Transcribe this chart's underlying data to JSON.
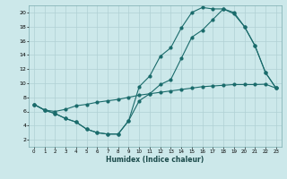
{
  "xlabel": "Humidex (Indice chaleur)",
  "bg_color": "#cce8ea",
  "grid_color": "#b0d0d4",
  "line_color": "#1a6b6b",
  "xlim": [
    -0.5,
    23.5
  ],
  "ylim": [
    1,
    21
  ],
  "xticks": [
    0,
    1,
    2,
    3,
    4,
    5,
    6,
    7,
    8,
    9,
    10,
    11,
    12,
    13,
    14,
    15,
    16,
    17,
    18,
    19,
    20,
    21,
    22,
    23
  ],
  "yticks": [
    2,
    4,
    6,
    8,
    10,
    12,
    14,
    16,
    18,
    20
  ],
  "curve1_x": [
    0,
    1,
    2,
    3,
    4,
    5,
    6,
    7,
    8,
    9,
    10,
    11,
    12,
    13,
    14,
    15,
    16,
    17,
    18,
    19,
    20,
    21,
    22,
    23
  ],
  "curve1_y": [
    7.0,
    6.2,
    5.7,
    5.0,
    4.5,
    3.5,
    3.0,
    2.8,
    2.8,
    4.7,
    9.5,
    11.0,
    13.8,
    15.0,
    17.8,
    20.0,
    20.7,
    20.5,
    20.5,
    19.8,
    18.0,
    15.3,
    11.5,
    9.3
  ],
  "curve2_x": [
    0,
    1,
    2,
    3,
    4,
    5,
    6,
    7,
    8,
    9,
    10,
    11,
    12,
    13,
    14,
    15,
    16,
    17,
    18,
    19,
    20,
    21,
    22,
    23
  ],
  "curve2_y": [
    7.0,
    6.2,
    5.7,
    5.0,
    4.5,
    3.5,
    3.0,
    2.8,
    2.8,
    4.7,
    7.5,
    8.5,
    9.8,
    10.5,
    13.5,
    16.5,
    17.5,
    19.0,
    20.5,
    20.0,
    18.0,
    15.3,
    11.5,
    9.3
  ],
  "curve3_x": [
    0,
    1,
    2,
    3,
    4,
    5,
    6,
    7,
    8,
    9,
    10,
    11,
    12,
    13,
    14,
    15,
    16,
    17,
    18,
    19,
    20,
    21,
    22,
    23
  ],
  "curve3_y": [
    7.0,
    6.2,
    6.0,
    6.3,
    6.8,
    7.0,
    7.3,
    7.5,
    7.7,
    8.0,
    8.3,
    8.5,
    8.7,
    8.9,
    9.1,
    9.3,
    9.5,
    9.6,
    9.7,
    9.8,
    9.8,
    9.8,
    9.85,
    9.3
  ]
}
